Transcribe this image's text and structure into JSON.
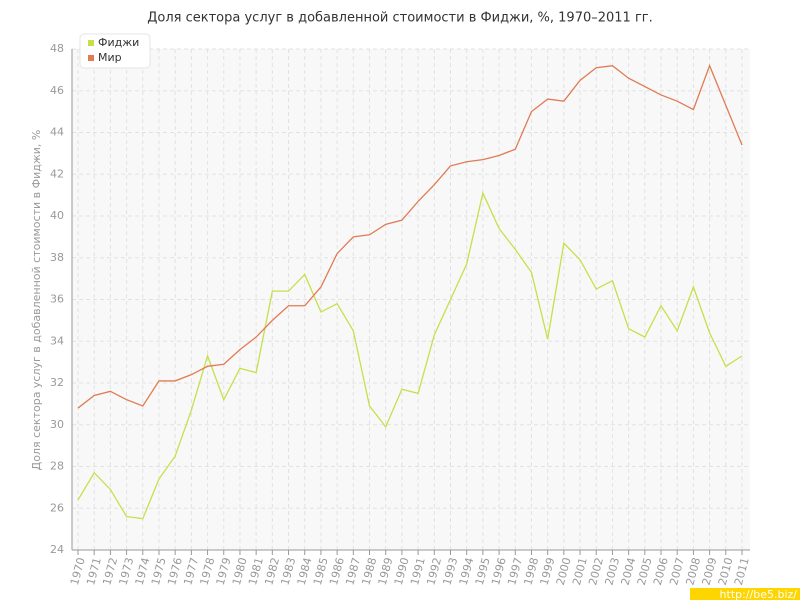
{
  "chart_data": {
    "type": "line",
    "title": "Доля сектора услуг в добавленной стоимости в Фиджи, %, 1970–2011 гг.",
    "y_label": "Доля сектора услуг в добавленной стоимости в Фиджи, %",
    "watermark": "http://be5.biz/",
    "categories": [
      "1970",
      "1971",
      "1972",
      "1973",
      "1974",
      "1975",
      "1976",
      "1977",
      "1978",
      "1979",
      "1980",
      "1981",
      "1982",
      "1983",
      "1984",
      "1985",
      "1986",
      "1987",
      "1988",
      "1989",
      "1990",
      "1991",
      "1992",
      "1993",
      "1994",
      "1995",
      "1996",
      "1997",
      "1998",
      "1999",
      "2000",
      "2001",
      "2002",
      "2003",
      "2004",
      "2005",
      "2006",
      "2007",
      "2008",
      "2009",
      "2010",
      "2011"
    ],
    "series": [
      {
        "name": "Фиджи",
        "color": "#c5e04a",
        "values": [
          26.4,
          27.7,
          26.9,
          25.6,
          25.5,
          27.4,
          28.5,
          30.7,
          33.3,
          31.2,
          32.7,
          32.5,
          36.4,
          36.4,
          37.2,
          35.4,
          35.8,
          34.5,
          30.9,
          29.9,
          31.7,
          31.5,
          34.3,
          36.0,
          37.7,
          41.1,
          39.4,
          38.4,
          37.3,
          34.1,
          38.7,
          37.9,
          36.5,
          36.9,
          34.6,
          34.2,
          35.7,
          34.5,
          36.6,
          34.4,
          32.8,
          33.3
        ]
      },
      {
        "name": "Мир",
        "color": "#e07b53",
        "values": [
          30.8,
          31.4,
          31.6,
          31.2,
          30.9,
          32.1,
          32.1,
          32.4,
          32.8,
          32.9,
          33.6,
          34.2,
          35.0,
          35.7,
          35.7,
          36.6,
          38.2,
          39.0,
          39.1,
          39.6,
          39.8,
          40.7,
          41.5,
          42.4,
          42.6,
          42.7,
          42.9,
          43.2,
          45.0,
          45.6,
          45.5,
          46.5,
          47.1,
          47.2,
          46.6,
          46.2,
          45.8,
          45.5,
          45.1,
          47.2,
          45.3,
          43.4
        ]
      }
    ],
    "ylim": [
      24,
      48
    ],
    "yticks": [
      24,
      26,
      28,
      30,
      32,
      34,
      36,
      38,
      40,
      42,
      44,
      46,
      48
    ],
    "grid": true,
    "legend": "top-left"
  }
}
